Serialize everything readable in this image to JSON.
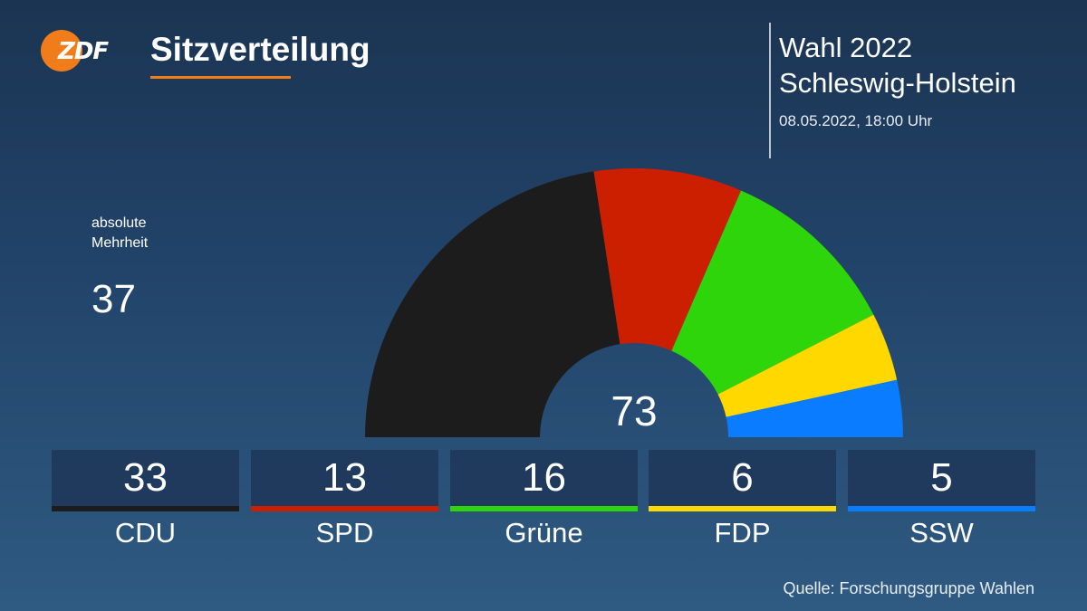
{
  "header": {
    "logo_text": "ZDF",
    "title": "Sitzverteilung",
    "election_title_line1": "Wahl 2022",
    "election_title_line2": "Schleswig-Holstein",
    "date": "08.05.2022, 18:00 Uhr"
  },
  "majority": {
    "label_line1": "absolute",
    "label_line2": "Mehrheit",
    "value": "37"
  },
  "footer": {
    "source": "Quelle: Forschungsgruppe Wahlen"
  },
  "chart_data": {
    "type": "pie",
    "subtype": "half-donut (parliament seats)",
    "total": 73,
    "categories": [
      "CDU",
      "SPD",
      "Grüne",
      "FDP",
      "SSW"
    ],
    "values": [
      33,
      13,
      16,
      6,
      5
    ],
    "colors": [
      "#1c1c1c",
      "#cc1f00",
      "#2ed50a",
      "#ffd800",
      "#0a7cff"
    ],
    "labels": [
      "33",
      "13",
      "16",
      "6",
      "5"
    ],
    "center_label": "73"
  }
}
